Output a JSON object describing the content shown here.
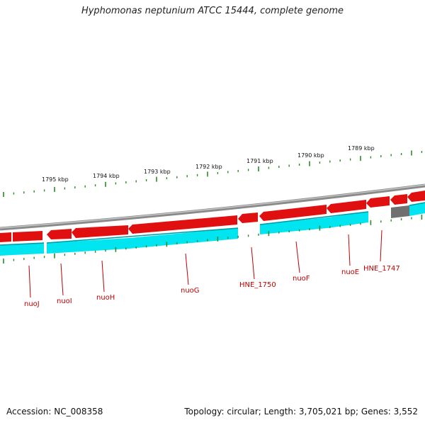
{
  "title": "Hyphomonas neptunium ATCC 15444, complete genome",
  "accession": "Accession: NC_008358",
  "topology": "Topology: circular; Length: 3,705,021 bp; Genes: 3,552",
  "colors": {
    "forward_gene": "#e01010",
    "reverse_gene": "#00e5f0",
    "backbone": "#8a8a8a",
    "other_feature": "#707070",
    "tick": "#2a8a2a",
    "gene_label": "#c00000"
  },
  "scale_labels": [
    "1795 kbp",
    "1794 kbp",
    "1793 kbp",
    "1792 kbp",
    "1791 kbp",
    "1790 kbp",
    "1789 kbp"
  ],
  "gene_labels": [
    "nuoJ",
    "nuoI",
    "nuoH",
    "nuoG",
    "HNE_1750",
    "nuoF",
    "nuoE",
    "HNE_1747"
  ]
}
